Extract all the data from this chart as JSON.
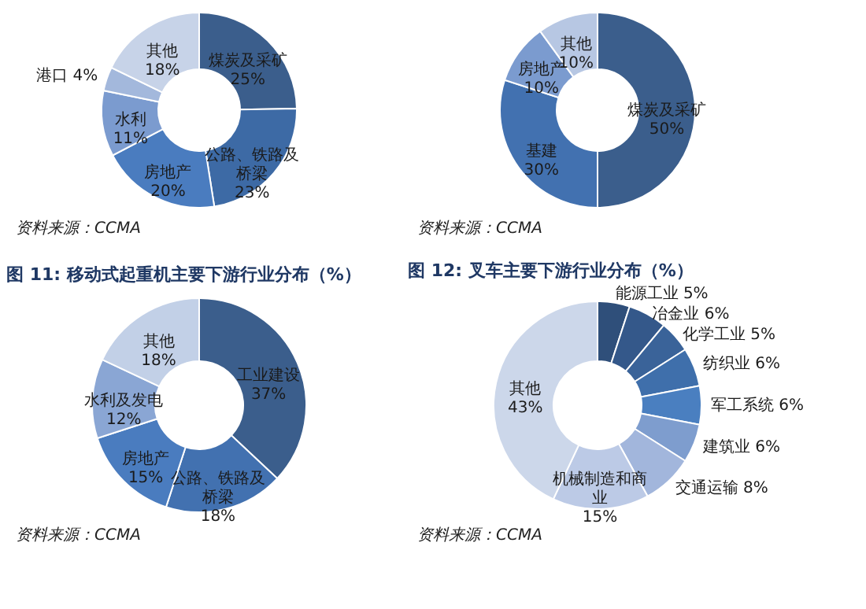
{
  "chart_data": [
    {
      "type": "donut",
      "categories": [
        "煤炭及采矿",
        "公路、铁路及桥梁",
        "房地产",
        "水利",
        "港口",
        "其他"
      ],
      "values": [
        25,
        23,
        20,
        11,
        4,
        18
      ],
      "value_labels": [
        "25%",
        "23%",
        "20%",
        "11%",
        "4%",
        "18%"
      ],
      "colors": [
        "#3b5e8c",
        "#3d6aa5",
        "#4a7cbf",
        "#7b9bcf",
        "#a3b8dc",
        "#c7d3e8"
      ],
      "annotations": [
        "资料来源：CCMA"
      ]
    },
    {
      "type": "donut",
      "categories": [
        "煤炭及采矿",
        "基建",
        "房地产",
        "其他"
      ],
      "values": [
        50,
        30,
        10,
        10
      ],
      "value_labels": [
        "50%",
        "30%",
        "10%",
        "10%"
      ],
      "colors": [
        "#3b5e8c",
        "#4271b0",
        "#7b9bcf",
        "#b7c7e3"
      ],
      "annotations": [
        "资料来源：CCMA"
      ]
    },
    {
      "type": "donut",
      "title": "图 11: 移动式起重机主要下游行业分布（%）",
      "categories": [
        "工业建设",
        "公路、铁路及桥梁",
        "房地产",
        "水利及发电",
        "其他"
      ],
      "values": [
        37,
        18,
        15,
        12,
        18
      ],
      "value_labels": [
        "37%",
        "18%",
        "15%",
        "12%",
        "18%"
      ],
      "colors": [
        "#3b5e8c",
        "#4271b0",
        "#4a7cbf",
        "#8aa6d4",
        "#c2d0e7"
      ],
      "annotations": [
        "资料来源：CCMA"
      ]
    },
    {
      "type": "donut",
      "title": "图 12: 叉车主要下游行业分布（%）",
      "categories": [
        "能源工业",
        "冶金业",
        "化学工业",
        "纺织业",
        "军工系统",
        "建筑业",
        "交通运输",
        "机械制造和商业",
        "其他"
      ],
      "values": [
        5,
        6,
        5,
        6,
        6,
        6,
        8,
        15,
        43
      ],
      "value_labels": [
        "5%",
        "6%",
        "5%",
        "6%",
        "6%",
        "6%",
        "8%",
        "15%",
        "43%"
      ],
      "colors": [
        "#2f4f7a",
        "#34588a",
        "#3a6399",
        "#3f6fab",
        "#4a7fc0",
        "#7e9dce",
        "#a2b6dc",
        "#bccae6",
        "#ccd7ea"
      ],
      "annotations": [
        "资料来源：CCMA"
      ]
    }
  ]
}
